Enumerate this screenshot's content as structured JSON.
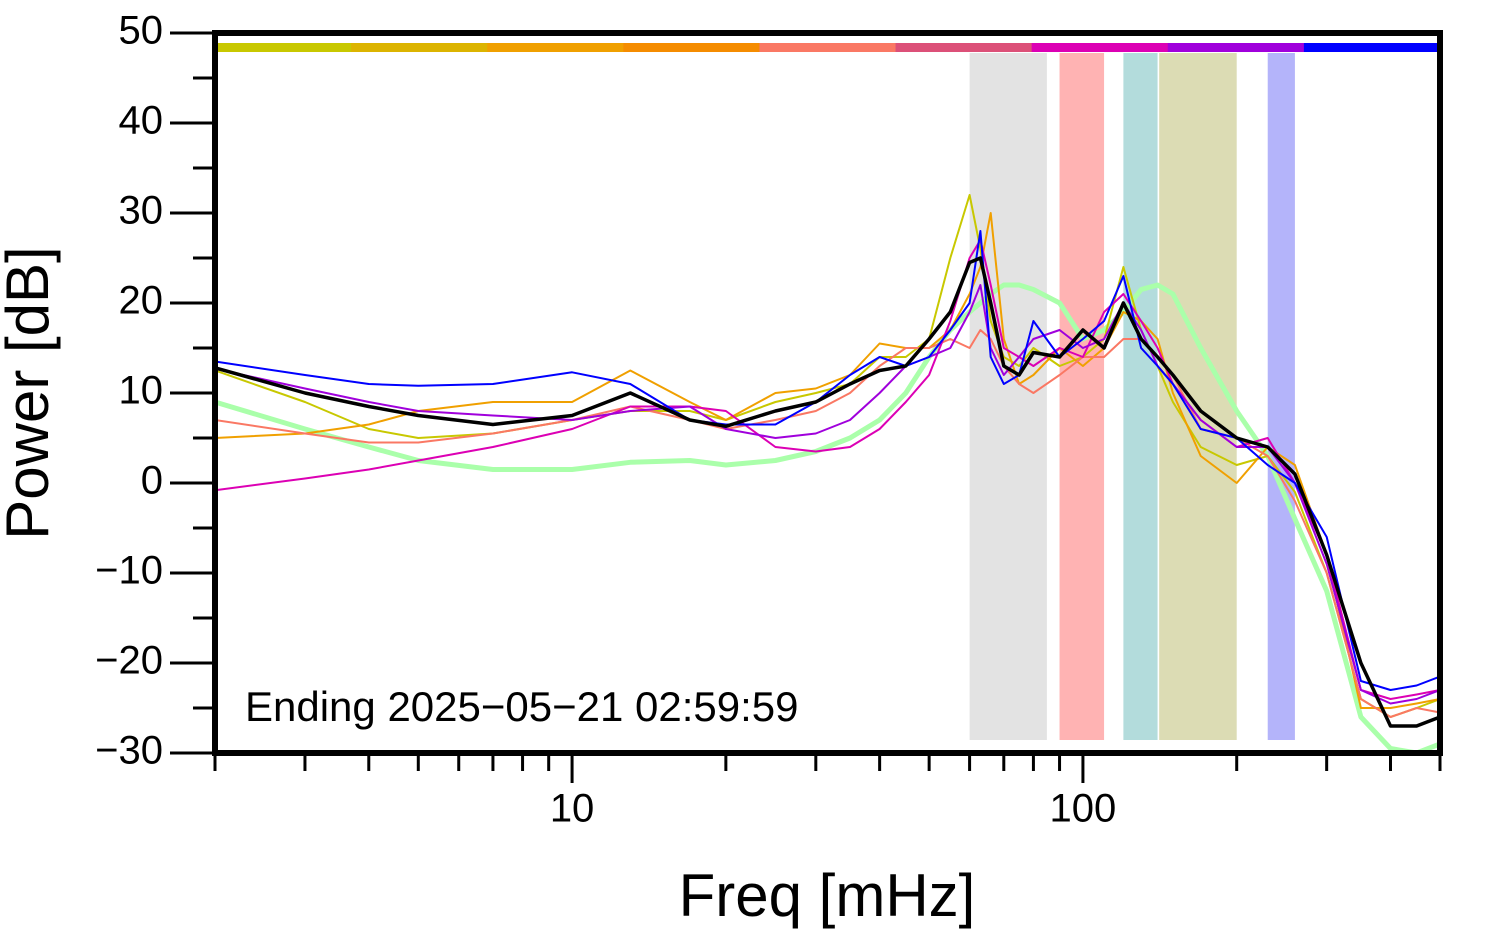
{
  "chart_data": {
    "type": "line",
    "xlabel": "Freq [mHz]",
    "ylabel": "Power [dB]",
    "annotation": "Ending 2025−05−21 02:59:59",
    "log_x": true,
    "xlim": [
      2,
      500
    ],
    "ylim": [
      -30,
      50
    ],
    "xticks": [
      10,
      100
    ],
    "xminor_ticks": [
      2,
      3,
      4,
      5,
      6,
      7,
      8,
      9,
      20,
      30,
      40,
      50,
      60,
      70,
      80,
      90,
      200,
      300,
      400,
      500
    ],
    "yticks": [
      {
        "value": -30,
        "label": "−30"
      },
      {
        "value": -20,
        "label": "−20"
      },
      {
        "value": -10,
        "label": "−10"
      },
      0,
      10,
      20,
      30,
      40,
      50
    ],
    "yminor_ticks": [
      -25,
      -15,
      -5,
      5,
      15,
      25,
      35,
      45
    ],
    "color_bar": [
      "#c8c800",
      "#dcb400",
      "#f0a000",
      "#f58c00",
      "#fa7864",
      "#dc5078",
      "#dc00b4",
      "#a000dc",
      "#0000ff"
    ],
    "bands": [
      {
        "range": [
          60,
          85
        ],
        "color": "#e3e3e3"
      },
      {
        "range": [
          90,
          110
        ],
        "color": "#ffb3b3"
      },
      {
        "range": [
          120,
          140
        ],
        "color": "#b3dcdc"
      },
      {
        "range": [
          141,
          200
        ],
        "color": "#dcdcb4"
      },
      {
        "range": [
          230,
          260
        ],
        "color": "#b4b4fa"
      }
    ],
    "x": [
      2,
      3,
      4,
      5,
      7,
      10,
      13,
      17,
      20,
      25,
      30,
      35,
      40,
      45,
      50,
      55,
      60,
      63,
      66,
      70,
      75,
      80,
      90,
      100,
      110,
      120,
      130,
      140,
      150,
      170,
      200,
      230,
      260,
      300,
      350,
      400,
      450,
      500
    ],
    "series": [
      {
        "color": "#aaffaa",
        "width": 5,
        "values": [
          9,
          6,
          4,
          2.5,
          1.5,
          1.5,
          2.3,
          2.5,
          2,
          2.5,
          3.5,
          5,
          7,
          10,
          14,
          17,
          19,
          20,
          21,
          22,
          22,
          21.5,
          20,
          16,
          17,
          19,
          21.5,
          22,
          21,
          15,
          8,
          3,
          -4,
          -12,
          -26,
          -29.5,
          -30,
          -29
        ]
      },
      {
        "color": "#c8c800",
        "width": 2,
        "values": [
          12.5,
          9,
          6,
          5,
          5.5,
          7,
          8,
          8,
          7,
          9,
          10,
          11,
          14,
          14,
          16,
          25,
          32,
          26,
          18,
          14,
          13,
          15,
          13,
          14,
          16,
          24,
          17,
          13,
          9,
          4,
          2,
          3,
          -1,
          -10,
          -24,
          -26,
          -25,
          -24
        ]
      },
      {
        "color": "#f0a000",
        "width": 2,
        "values": [
          5,
          5.5,
          6.5,
          8,
          9,
          9,
          12.5,
          9,
          7,
          10,
          10.5,
          12,
          15.5,
          15,
          15,
          17,
          21,
          24,
          30,
          16,
          11,
          12,
          15,
          13,
          15,
          19,
          18,
          16,
          10,
          3,
          0,
          4,
          2,
          -8,
          -25,
          -25,
          -24.5,
          -24
        ]
      },
      {
        "color": "#fa7864",
        "width": 2,
        "values": [
          7,
          5.5,
          4.5,
          4.5,
          5.5,
          7,
          8.5,
          7,
          6,
          7,
          8,
          10,
          13,
          15,
          15,
          16,
          15,
          17,
          16,
          13,
          11,
          10,
          12,
          14,
          14,
          16,
          16,
          14,
          12,
          6,
          5,
          3,
          -2,
          -10,
          -24,
          -26,
          -25,
          -25.5
        ]
      },
      {
        "color": "#dc00b4",
        "width": 2,
        "values": [
          -0.8,
          0.5,
          1.5,
          2.5,
          4,
          6,
          8.5,
          8.5,
          8,
          4,
          3.5,
          4,
          6,
          9,
          12,
          18,
          25,
          27,
          22,
          15,
          14,
          13,
          15,
          14,
          19,
          21,
          18,
          15,
          11,
          7,
          4,
          5,
          0,
          -8,
          -23,
          -24,
          -23.5,
          -23
        ]
      },
      {
        "color": "#a000dc",
        "width": 2,
        "values": [
          12.7,
          10.5,
          9,
          8,
          7.5,
          7,
          8,
          8.5,
          6,
          5,
          5.5,
          7,
          10,
          13,
          14,
          15,
          19,
          22,
          15,
          12,
          14,
          16,
          17,
          15,
          16,
          20,
          17,
          13,
          11,
          7,
          4,
          4,
          0,
          -9,
          -23,
          -24.5,
          -24,
          -23
        ]
      },
      {
        "color": "#0000ff",
        "width": 2,
        "values": [
          13.5,
          12,
          11,
          10.8,
          11,
          12.3,
          11,
          7,
          6.5,
          6.5,
          9,
          12,
          14,
          13,
          14,
          17,
          20,
          28,
          14,
          11,
          12,
          18,
          14,
          16,
          18,
          23,
          15,
          13,
          11,
          6,
          5,
          2,
          0,
          -6,
          -22,
          -23,
          -22.5,
          -21.5
        ]
      },
      {
        "color": "#000000",
        "width": 3.5,
        "values": [
          12.8,
          10,
          8.5,
          7.5,
          6.5,
          7.5,
          10,
          7,
          6.3,
          8,
          9,
          11,
          12.5,
          13,
          16,
          19,
          24.5,
          25,
          20,
          13,
          12,
          14.5,
          14,
          17,
          15,
          20,
          16,
          14,
          12,
          8,
          5,
          4,
          1,
          -8,
          -20,
          -27,
          -27,
          -26
        ]
      }
    ]
  }
}
